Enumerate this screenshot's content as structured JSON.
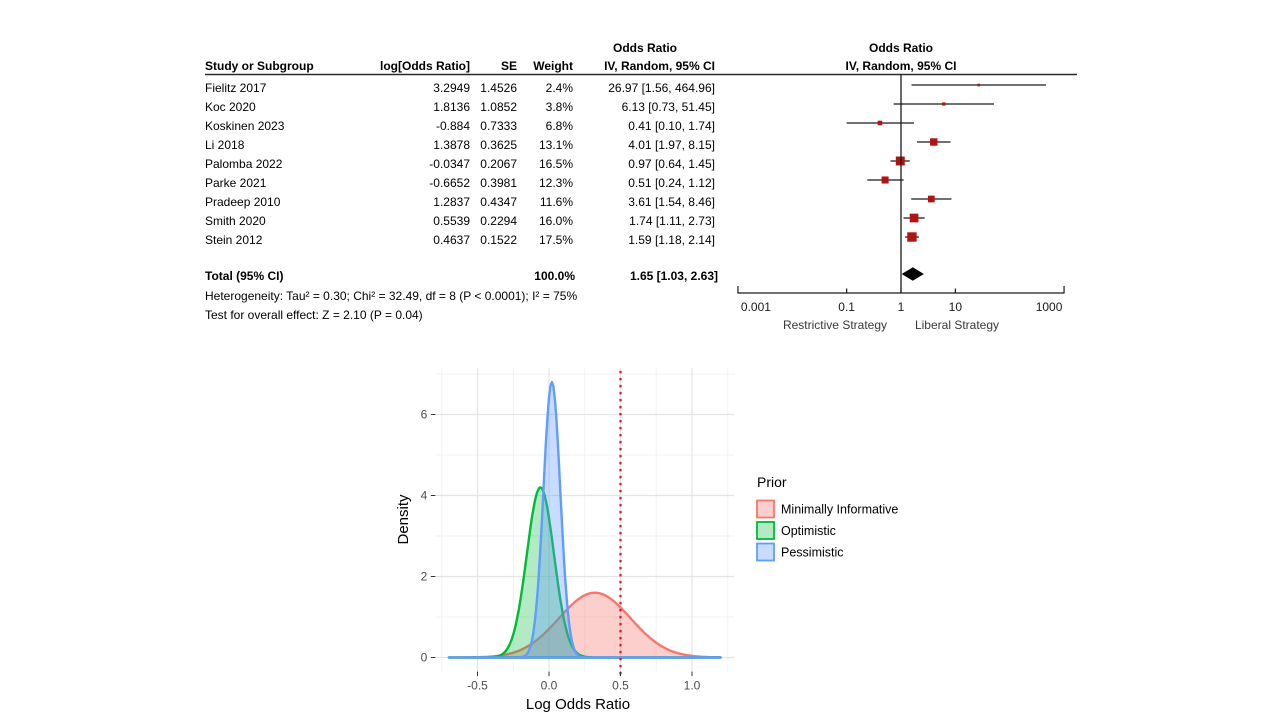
{
  "chart_data": [
    {
      "type": "forest",
      "header": {
        "or_title": "Odds Ratio",
        "study": "Study or Subgroup",
        "log_or": "log[Odds Ratio]",
        "se": "SE",
        "weight": "Weight",
        "ci": "IV, Random, 95% CI"
      },
      "studies": [
        {
          "study": "Fielitz 2017",
          "log_or": "3.2949",
          "se": "1.4526",
          "weight": "2.4%",
          "weight_pct": 2.4,
          "ci_text": "26.97 [1.56, 464.96]",
          "or": 26.97,
          "lo": 1.56,
          "hi": 464.96
        },
        {
          "study": "Koc 2020",
          "log_or": "1.8136",
          "se": "1.0852",
          "weight": "3.8%",
          "weight_pct": 3.8,
          "ci_text": "6.13 [0.73, 51.45]",
          "or": 6.13,
          "lo": 0.73,
          "hi": 51.45
        },
        {
          "study": "Koskinen 2023",
          "log_or": "-0.884",
          "se": "0.7333",
          "weight": "6.8%",
          "weight_pct": 6.8,
          "ci_text": "0.41 [0.10, 1.74]",
          "or": 0.41,
          "lo": 0.1,
          "hi": 1.74
        },
        {
          "study": "Li 2018",
          "log_or": "1.3878",
          "se": "0.3625",
          "weight": "13.1%",
          "weight_pct": 13.1,
          "ci_text": "4.01 [1.97, 8.15]",
          "or": 4.01,
          "lo": 1.97,
          "hi": 8.15
        },
        {
          "study": "Palomba 2022",
          "log_or": "-0.0347",
          "se": "0.2067",
          "weight": "16.5%",
          "weight_pct": 16.5,
          "ci_text": "0.97 [0.64, 1.45]",
          "or": 0.97,
          "lo": 0.64,
          "hi": 1.45
        },
        {
          "study": "Parke 2021",
          "log_or": "-0.6652",
          "se": "0.3981",
          "weight": "12.3%",
          "weight_pct": 12.3,
          "ci_text": "0.51 [0.24, 1.12]",
          "or": 0.51,
          "lo": 0.24,
          "hi": 1.12
        },
        {
          "study": "Pradeep 2010",
          "log_or": "1.2837",
          "se": "0.4347",
          "weight": "11.6%",
          "weight_pct": 11.6,
          "ci_text": "3.61 [1.54, 8.46]",
          "or": 3.61,
          "lo": 1.54,
          "hi": 8.46
        },
        {
          "study": "Smith 2020",
          "log_or": "0.5539",
          "se": "0.2294",
          "weight": "16.0%",
          "weight_pct": 16.0,
          "ci_text": "1.74 [1.11, 2.73]",
          "or": 1.74,
          "lo": 1.11,
          "hi": 2.73
        },
        {
          "study": "Stein 2012",
          "log_or": "0.4637",
          "se": "0.1522",
          "weight": "17.5%",
          "weight_pct": 17.5,
          "ci_text": "1.59 [1.18, 2.14]",
          "or": 1.59,
          "lo": 1.18,
          "hi": 2.14
        }
      ],
      "total": {
        "label": "Total (95% CI)",
        "weight": "100.0%",
        "ci_text": "1.65 [1.03, 2.63]",
        "or": 1.65,
        "lo": 1.03,
        "hi": 2.63
      },
      "heterogeneity": "Heterogeneity: Tau² = 0.30; Chi² = 32.49, df = 8 (P < 0.0001); I² = 75%",
      "overall_effect": "Test for overall effect: Z = 2.10 (P = 0.04)",
      "axis": {
        "scale": "log",
        "ticks": [
          0.001,
          0.1,
          1,
          10,
          1000
        ],
        "tick_labels": [
          "0.001",
          "0.1",
          "1",
          "10",
          "1000"
        ],
        "left_label": "Restrictive Strategy",
        "right_label": "Liberal Strategy"
      },
      "marker_color": "#B01310",
      "diamond_color": "#000000"
    },
    {
      "type": "area",
      "subtype": "density",
      "xlabel": "Log Odds Ratio",
      "ylabel": "Density",
      "x_ticks": [
        -0.5,
        0.0,
        0.5,
        1.0
      ],
      "x_tick_labels": [
        "-0.5",
        "0.0",
        "0.5",
        "1.0"
      ],
      "y_ticks": [
        0,
        2,
        4,
        6
      ],
      "y_tick_labels": [
        "0",
        "2",
        "4",
        "6"
      ],
      "xlim": [
        -0.795,
        1.295
      ],
      "ylim": [
        -0.35,
        7.15
      ],
      "grid": true,
      "reference_line": {
        "x": 0.5,
        "style": "dotted",
        "color": "#CC2027"
      },
      "legend": {
        "title": "Prior",
        "position": "right",
        "entries": [
          {
            "label": "Minimally Informative",
            "color": "#F8766D",
            "fill": "rgba(248,118,109,0.35)"
          },
          {
            "label": "Optimistic",
            "color": "#00BA38",
            "fill": "rgba(0,186,56,0.30)"
          },
          {
            "label": "Pessimistic",
            "color": "#619CFF",
            "fill": "rgba(97,156,255,0.35)"
          }
        ]
      },
      "series": [
        {
          "name": "Minimally Informative",
          "distribution": "normal",
          "mean": 0.32,
          "sd": 0.25,
          "peak_density": 1.6,
          "x_range": [
            -0.7,
            1.2
          ],
          "color": "#F8766D",
          "fill": "rgba(248,118,109,0.35)"
        },
        {
          "name": "Optimistic",
          "distribution": "normal",
          "mean": -0.06,
          "sd": 0.095,
          "peak_density": 4.2,
          "x_range": [
            -0.7,
            1.2
          ],
          "color": "#00BA38",
          "fill": "rgba(0,186,56,0.30)"
        },
        {
          "name": "Pessimistic",
          "distribution": "normal",
          "mean": 0.02,
          "sd": 0.059,
          "peak_density": 6.8,
          "x_range": [
            -0.7,
            1.2
          ],
          "color": "#619CFF",
          "fill": "rgba(97,156,255,0.35)"
        }
      ]
    }
  ]
}
